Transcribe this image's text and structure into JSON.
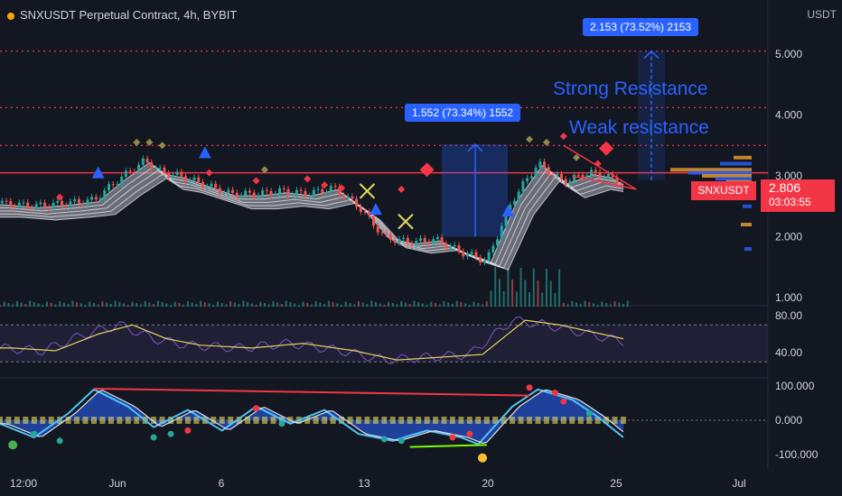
{
  "header": {
    "title": "SNXUSDT Perpetual Contract, 4h, BYBIT",
    "currency": "USDT"
  },
  "chart_data": {
    "type": "line",
    "title": "SNXUSDT Perpetual Contract, 4h, BYBIT",
    "y_unit": "USDT",
    "price_axis": {
      "ticks": [
        "5.000",
        "4.000",
        "3.000",
        "2.000",
        "1.000"
      ],
      "values": [
        5,
        4,
        3,
        2,
        1
      ]
    },
    "time_axis": {
      "ticks": [
        "12:00",
        "Jun",
        "6",
        "13",
        "20",
        "25",
        "Jul"
      ]
    },
    "price_series": [
      {
        "x": 0,
        "y": 2.55
      },
      {
        "x": 4,
        "y": 2.5
      },
      {
        "x": 8,
        "y": 2.55
      },
      {
        "x": 11,
        "y": 2.6
      },
      {
        "x": 14,
        "y": 2.95
      },
      {
        "x": 17,
        "y": 3.25
      },
      {
        "x": 19,
        "y": 3.05
      },
      {
        "x": 21,
        "y": 3.0
      },
      {
        "x": 24,
        "y": 2.85
      },
      {
        "x": 27,
        "y": 2.7
      },
      {
        "x": 30,
        "y": 2.7
      },
      {
        "x": 33,
        "y": 2.75
      },
      {
        "x": 36,
        "y": 2.7
      },
      {
        "x": 39,
        "y": 2.8
      },
      {
        "x": 42,
        "y": 2.5
      },
      {
        "x": 45,
        "y": 2.0
      },
      {
        "x": 48,
        "y": 1.9
      },
      {
        "x": 51,
        "y": 1.95
      },
      {
        "x": 54,
        "y": 1.75
      },
      {
        "x": 57,
        "y": 1.6
      },
      {
        "x": 60,
        "y": 2.6
      },
      {
        "x": 63,
        "y": 3.2
      },
      {
        "x": 66,
        "y": 2.9
      },
      {
        "x": 69,
        "y": 3.05
      },
      {
        "x": 71,
        "y": 3.0
      },
      {
        "x": 73,
        "y": 2.85
      }
    ],
    "horizontal_levels": {
      "solid_resistance": 3.05,
      "dotted": [
        5.05,
        4.12,
        3.5
      ]
    },
    "measurements": [
      {
        "label": "1.552 (73.34%) 1552"
      },
      {
        "label": "2.153 (73.52%) 2153"
      }
    ],
    "annotations": [
      "Strong Resistance",
      "Weak resistance"
    ],
    "last_price": {
      "symbol": "SNXUSDT",
      "price": "2.806",
      "countdown": "03:03:55"
    },
    "rsi": {
      "ticks": [
        "80.00",
        "40.00"
      ],
      "values": [
        80,
        40
      ],
      "upper_band": 70,
      "lower_band": 30,
      "series": [
        {
          "x": 0,
          "y": 45
        },
        {
          "x": 5,
          "y": 42
        },
        {
          "x": 10,
          "y": 60
        },
        {
          "x": 14,
          "y": 70
        },
        {
          "x": 18,
          "y": 55
        },
        {
          "x": 22,
          "y": 48
        },
        {
          "x": 28,
          "y": 45
        },
        {
          "x": 34,
          "y": 50
        },
        {
          "x": 40,
          "y": 42
        },
        {
          "x": 45,
          "y": 32
        },
        {
          "x": 50,
          "y": 35
        },
        {
          "x": 55,
          "y": 38
        },
        {
          "x": 60,
          "y": 75
        },
        {
          "x": 64,
          "y": 70
        },
        {
          "x": 68,
          "y": 62
        },
        {
          "x": 73,
          "y": 52
        }
      ]
    },
    "oscillator": {
      "ticks": [
        "100.000",
        "0.000",
        "-100.000"
      ],
      "values": [
        100,
        0,
        -100
      ],
      "series": [
        {
          "x": 0,
          "y": -10
        },
        {
          "x": 4,
          "y": -50
        },
        {
          "x": 8,
          "y": 20
        },
        {
          "x": 11,
          "y": 90
        },
        {
          "x": 15,
          "y": 40
        },
        {
          "x": 18,
          "y": -20
        },
        {
          "x": 22,
          "y": 30
        },
        {
          "x": 26,
          "y": -30
        },
        {
          "x": 30,
          "y": 40
        },
        {
          "x": 34,
          "y": -10
        },
        {
          "x": 38,
          "y": 30
        },
        {
          "x": 42,
          "y": -40
        },
        {
          "x": 46,
          "y": -60
        },
        {
          "x": 50,
          "y": -30
        },
        {
          "x": 54,
          "y": -50
        },
        {
          "x": 56,
          "y": -70
        },
        {
          "x": 60,
          "y": 40
        },
        {
          "x": 63,
          "y": 90
        },
        {
          "x": 67,
          "y": 60
        },
        {
          "x": 70,
          "y": 10
        },
        {
          "x": 73,
          "y": -50
        }
      ]
    }
  }
}
